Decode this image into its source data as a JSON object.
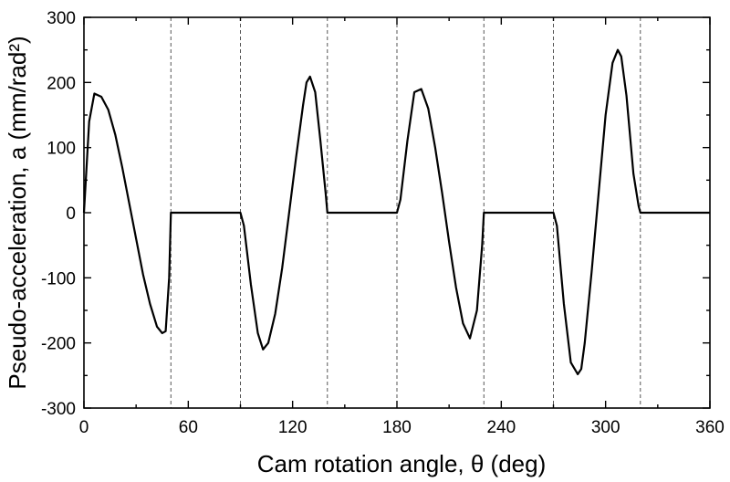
{
  "chart_data": {
    "type": "line",
    "title": "",
    "xlabel": "Cam rotation angle, θ (deg)",
    "ylabel": "Pseudo-acceleration, a (mm/rad²)",
    "xlim": [
      0,
      360
    ],
    "ylim": [
      -300,
      300
    ],
    "xticks": [
      0,
      60,
      120,
      180,
      240,
      300,
      360
    ],
    "yticks": [
      -300,
      -200,
      -100,
      0,
      100,
      200,
      300
    ],
    "xtick_labels": [
      "0",
      "60",
      "120",
      "180",
      "240",
      "300",
      "360"
    ],
    "ytick_labels": [
      "-300",
      "-200",
      "-100",
      "0",
      "100",
      "200",
      "300"
    ],
    "grid": false,
    "legend": "none",
    "vertical_reference_lines": [
      50,
      90,
      140,
      180,
      230,
      270,
      320
    ],
    "series": [
      {
        "color": "#000000",
        "x": [
          0,
          3,
          6,
          10,
          14,
          18,
          22,
          26,
          30,
          34,
          38,
          42,
          45,
          47,
          49,
          50,
          90,
          92,
          96,
          100,
          103,
          106,
          110,
          114,
          118,
          122,
          126,
          128,
          130,
          133,
          136,
          139,
          140,
          180,
          182,
          186,
          190,
          194,
          198,
          202,
          206,
          210,
          214,
          218,
          222,
          226,
          229,
          230,
          270,
          272,
          276,
          280,
          284,
          286,
          288,
          292,
          296,
          300,
          304,
          307,
          309,
          312,
          316,
          319,
          320,
          360
        ],
        "y": [
          0,
          140,
          183,
          178,
          158,
          120,
          70,
          15,
          -40,
          -95,
          -140,
          -175,
          -185,
          -182,
          -100,
          0,
          0,
          -20,
          -110,
          -185,
          -210,
          -200,
          -155,
          -85,
          0,
          85,
          165,
          200,
          209,
          185,
          110,
          30,
          0,
          0,
          20,
          110,
          185,
          190,
          160,
          100,
          30,
          -45,
          -115,
          -170,
          -193,
          -150,
          -50,
          0,
          0,
          -20,
          -140,
          -230,
          -248,
          -240,
          -200,
          -90,
          30,
          150,
          230,
          250,
          240,
          180,
          60,
          10,
          0,
          0
        ]
      }
    ]
  }
}
